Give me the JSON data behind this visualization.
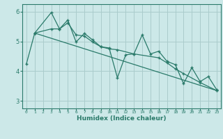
{
  "xlabel": "Humidex (Indice chaleur)",
  "xlim": [
    -0.5,
    23.5
  ],
  "ylim": [
    2.75,
    6.25
  ],
  "yticks": [
    3,
    4,
    5,
    6
  ],
  "xticks": [
    0,
    1,
    2,
    3,
    4,
    5,
    6,
    7,
    8,
    9,
    10,
    11,
    12,
    13,
    14,
    15,
    16,
    17,
    18,
    19,
    20,
    21,
    22,
    23
  ],
  "bg_color": "#cce8e8",
  "grid_color": "#aacccc",
  "line_color": "#2a7a6a",
  "series1_x": [
    0,
    1,
    3,
    4,
    5,
    6,
    7,
    8,
    9,
    10,
    11,
    12,
    13,
    14,
    15,
    16,
    17,
    18,
    19,
    20,
    21,
    22,
    23
  ],
  "series1_y": [
    4.25,
    5.28,
    5.97,
    5.42,
    5.72,
    4.98,
    5.27,
    5.05,
    4.82,
    4.78,
    3.78,
    4.55,
    4.58,
    5.22,
    4.58,
    4.67,
    4.33,
    4.22,
    3.58,
    4.12,
    3.65,
    3.82,
    3.38
  ],
  "series2_x": [
    1,
    3,
    4,
    5,
    6,
    7,
    8,
    9,
    10,
    11,
    13,
    16,
    17,
    18,
    19,
    21,
    23
  ],
  "series2_y": [
    5.28,
    5.42,
    5.42,
    5.62,
    5.22,
    5.18,
    4.98,
    4.82,
    4.75,
    4.72,
    4.58,
    4.45,
    4.28,
    4.08,
    3.92,
    3.62,
    3.35
  ],
  "series3_x": [
    1,
    23
  ],
  "series3_y": [
    5.28,
    3.35
  ]
}
